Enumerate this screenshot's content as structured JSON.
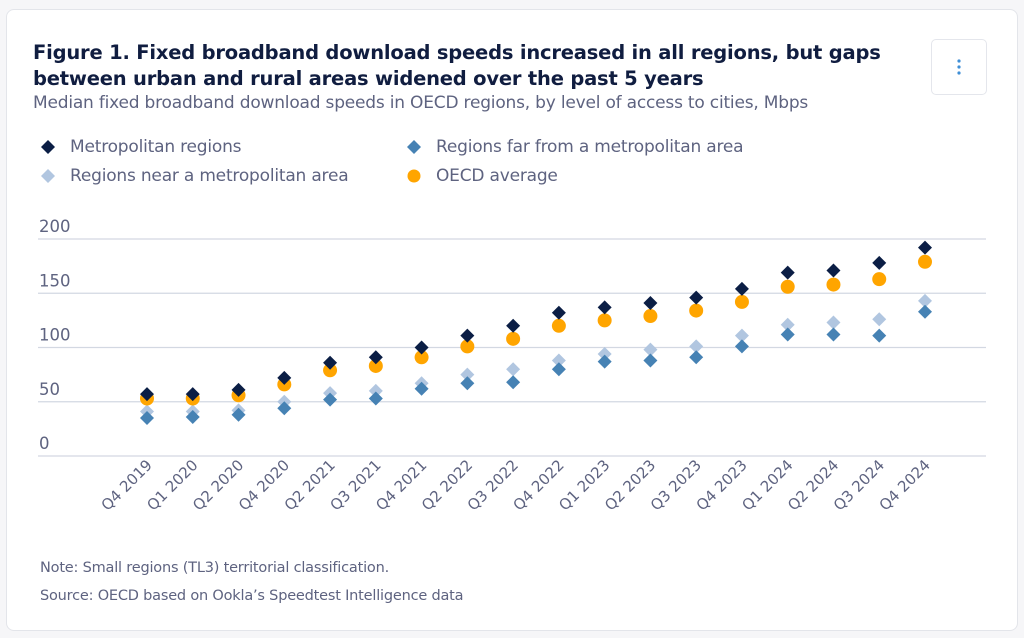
{
  "card": {
    "menu_button_icon": "vertical-ellipsis-icon"
  },
  "chart_data": {
    "type": "scatter",
    "title": "Figure 1. Fixed broadband download speeds increased in all regions, but gaps between urban and rural areas widened over the past 5 years",
    "subtitle": "Median fixed broadband download speeds in OECD regions, by level of access to cities, Mbps",
    "xlabel": "",
    "ylabel": "",
    "ylim": [
      0,
      200
    ],
    "yticks": [
      0,
      50,
      100,
      150,
      200
    ],
    "ytick_labels": [
      "0",
      "50",
      "100",
      "150",
      "200"
    ],
    "grid": true,
    "legend_position": "top-left",
    "categories": [
      "Q4 2019",
      "Q1 2020",
      "Q2 2020",
      "Q4 2020",
      "Q2 2021",
      "Q3 2021",
      "Q4 2021",
      "Q2 2022",
      "Q3 2022",
      "Q4 2022",
      "Q1 2023",
      "Q2 2023",
      "Q3 2023",
      "Q4 2023",
      "Q1 2024",
      "Q2 2024",
      "Q3 2024",
      "Q4 2024"
    ],
    "series": [
      {
        "name": "Metropolitan regions",
        "marker": "diamond",
        "color": "#0b1e45",
        "values": [
          57,
          57,
          61,
          72,
          86,
          91,
          100,
          111,
          120,
          132,
          137,
          141,
          146,
          154,
          169,
          171,
          178,
          192
        ]
      },
      {
        "name": "Regions far from a metropolitan area",
        "marker": "diamond",
        "color": "#4682b4",
        "values": [
          35,
          36,
          38,
          44,
          52,
          53,
          62,
          67,
          68,
          80,
          87,
          88,
          91,
          101,
          112,
          112,
          111,
          133
        ]
      },
      {
        "name": "Regions near a metropolitan area",
        "marker": "diamond",
        "color": "#b1c6e0",
        "values": [
          41,
          41,
          42,
          50,
          58,
          60,
          67,
          75,
          80,
          88,
          94,
          98,
          101,
          111,
          121,
          123,
          126,
          143
        ]
      },
      {
        "name": "OECD average",
        "marker": "circle",
        "color": "#ffa500",
        "values": [
          53,
          53,
          56,
          66,
          79,
          83,
          91,
          101,
          108,
          120,
          125,
          129,
          134,
          142,
          156,
          158,
          163,
          179
        ]
      }
    ],
    "legend": [
      {
        "label": "Metropolitan regions",
        "marker": "diamond",
        "color": "#0b1e45"
      },
      {
        "label": "Regions far from a metropolitan area",
        "marker": "diamond",
        "color": "#4682b4"
      },
      {
        "label": "Regions near a metropolitan area",
        "marker": "diamond",
        "color": "#b1c6e0"
      },
      {
        "label": "OECD average",
        "marker": "circle",
        "color": "#ffa500"
      }
    ],
    "note": "Note: Small regions (TL3) territorial classification.",
    "source": "Source: OECD based on Ookla’s Speedtest Intelligence data"
  }
}
